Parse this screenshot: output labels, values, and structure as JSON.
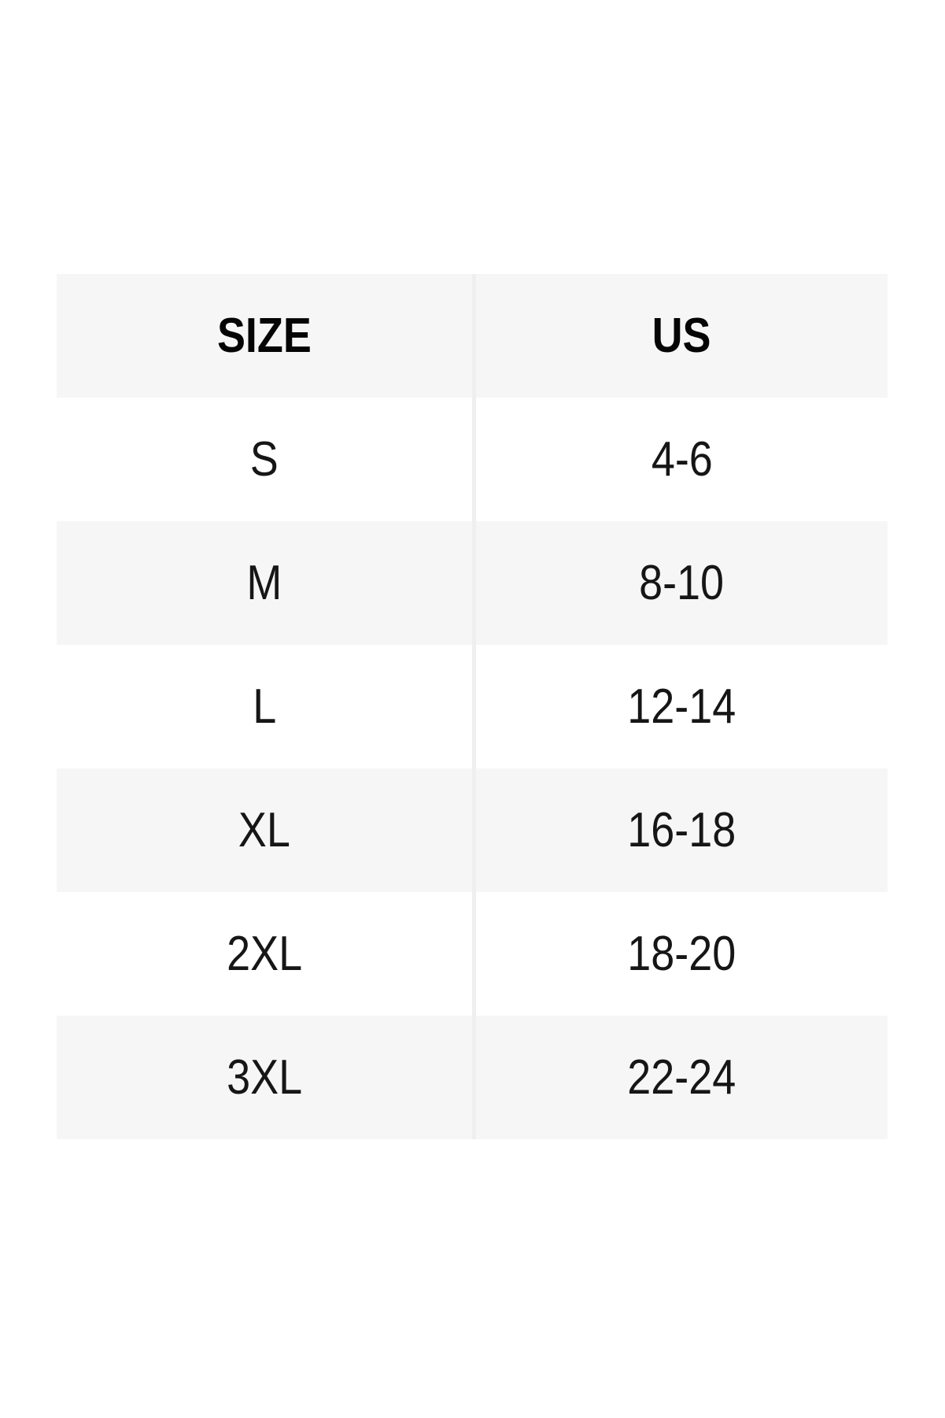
{
  "chart_data": {
    "type": "table",
    "columns": [
      "SIZE",
      "US"
    ],
    "rows": [
      [
        "S",
        "4-6"
      ],
      [
        "M",
        "8-10"
      ],
      [
        "L",
        "12-14"
      ],
      [
        "XL",
        "16-18"
      ],
      [
        "2XL",
        "18-20"
      ],
      [
        "3XL",
        "22-24"
      ]
    ],
    "legend_position": "none",
    "grid": "row-stripes"
  },
  "colors": {
    "page_bg": "#ffffff",
    "stripe_bg": "#f6f6f6",
    "alt_row_bg": "#ffffff",
    "divider": "#efefef",
    "header_text": "#050505",
    "cell_text": "#161616"
  }
}
